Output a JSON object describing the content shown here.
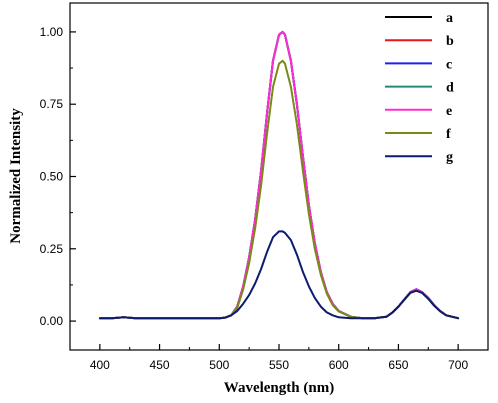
{
  "chart_data": {
    "type": "line",
    "title": "",
    "xlabel": "Wavelength (nm)",
    "ylabel": "Normalized Intensity",
    "xlim": [
      375,
      725
    ],
    "ylim": [
      -0.1,
      1.1
    ],
    "xticks": [
      400,
      450,
      500,
      550,
      600,
      650,
      700
    ],
    "xtick_labels": [
      "400",
      "450",
      "500",
      "550",
      "600",
      "650",
      "700"
    ],
    "yticks": [
      0.0,
      0.25,
      0.5,
      0.75,
      1.0
    ],
    "ytick_labels": [
      "0.00",
      "0.25",
      "0.50",
      "0.75",
      "1.00"
    ],
    "grid": false,
    "legend_position": "top-right",
    "x": [
      400,
      410,
      420,
      430,
      440,
      450,
      460,
      470,
      480,
      490,
      500,
      505,
      510,
      515,
      520,
      525,
      530,
      535,
      540,
      545,
      550,
      553,
      555,
      560,
      565,
      570,
      575,
      580,
      585,
      590,
      595,
      600,
      610,
      620,
      630,
      640,
      645,
      650,
      655,
      660,
      665,
      670,
      675,
      680,
      685,
      690,
      700
    ],
    "series": [
      {
        "name": "a",
        "color": "#000000",
        "values": [
          0.01,
          0.01,
          0.013,
          0.01,
          0.01,
          0.01,
          0.01,
          0.01,
          0.01,
          0.01,
          0.01,
          0.012,
          0.02,
          0.05,
          0.12,
          0.22,
          0.35,
          0.52,
          0.72,
          0.9,
          0.99,
          1.0,
          0.99,
          0.9,
          0.75,
          0.57,
          0.4,
          0.27,
          0.17,
          0.1,
          0.06,
          0.035,
          0.015,
          0.01,
          0.01,
          0.015,
          0.03,
          0.05,
          0.075,
          0.1,
          0.11,
          0.1,
          0.08,
          0.055,
          0.035,
          0.02,
          0.01
        ]
      },
      {
        "name": "b",
        "color": "#e8141c",
        "values": [
          0.01,
          0.01,
          0.013,
          0.01,
          0.01,
          0.01,
          0.01,
          0.01,
          0.01,
          0.01,
          0.01,
          0.012,
          0.02,
          0.05,
          0.12,
          0.22,
          0.35,
          0.52,
          0.72,
          0.9,
          0.99,
          1.0,
          0.99,
          0.9,
          0.75,
          0.57,
          0.4,
          0.27,
          0.17,
          0.1,
          0.06,
          0.035,
          0.015,
          0.01,
          0.01,
          0.015,
          0.03,
          0.05,
          0.075,
          0.1,
          0.11,
          0.1,
          0.08,
          0.055,
          0.035,
          0.02,
          0.01
        ]
      },
      {
        "name": "c",
        "color": "#1f1fe6",
        "values": [
          0.01,
          0.01,
          0.013,
          0.01,
          0.01,
          0.01,
          0.01,
          0.01,
          0.01,
          0.01,
          0.01,
          0.012,
          0.02,
          0.05,
          0.12,
          0.22,
          0.35,
          0.52,
          0.72,
          0.9,
          0.99,
          1.0,
          0.99,
          0.9,
          0.75,
          0.57,
          0.4,
          0.27,
          0.17,
          0.1,
          0.06,
          0.035,
          0.015,
          0.01,
          0.01,
          0.015,
          0.03,
          0.05,
          0.075,
          0.1,
          0.11,
          0.1,
          0.08,
          0.055,
          0.035,
          0.02,
          0.01
        ]
      },
      {
        "name": "d",
        "color": "#1f8a80",
        "values": [
          0.01,
          0.01,
          0.013,
          0.01,
          0.01,
          0.01,
          0.01,
          0.01,
          0.01,
          0.01,
          0.01,
          0.012,
          0.02,
          0.05,
          0.12,
          0.22,
          0.35,
          0.52,
          0.72,
          0.9,
          0.99,
          1.0,
          0.99,
          0.9,
          0.75,
          0.57,
          0.4,
          0.27,
          0.17,
          0.1,
          0.06,
          0.035,
          0.015,
          0.01,
          0.01,
          0.015,
          0.03,
          0.05,
          0.075,
          0.1,
          0.11,
          0.1,
          0.08,
          0.055,
          0.035,
          0.02,
          0.01
        ]
      },
      {
        "name": "e",
        "color": "#ff2bd4",
        "values": [
          0.01,
          0.01,
          0.013,
          0.01,
          0.01,
          0.01,
          0.01,
          0.01,
          0.01,
          0.01,
          0.01,
          0.012,
          0.02,
          0.05,
          0.12,
          0.22,
          0.35,
          0.52,
          0.72,
          0.9,
          0.99,
          1.0,
          0.99,
          0.9,
          0.75,
          0.57,
          0.4,
          0.27,
          0.17,
          0.1,
          0.06,
          0.035,
          0.015,
          0.01,
          0.01,
          0.015,
          0.03,
          0.05,
          0.075,
          0.1,
          0.11,
          0.1,
          0.08,
          0.055,
          0.035,
          0.02,
          0.01
        ]
      },
      {
        "name": "f",
        "color": "#7a8a14",
        "values": [
          0.01,
          0.01,
          0.013,
          0.01,
          0.01,
          0.01,
          0.01,
          0.01,
          0.01,
          0.01,
          0.01,
          0.012,
          0.02,
          0.045,
          0.11,
          0.2,
          0.32,
          0.47,
          0.65,
          0.81,
          0.89,
          0.9,
          0.89,
          0.81,
          0.68,
          0.52,
          0.37,
          0.25,
          0.16,
          0.095,
          0.055,
          0.033,
          0.015,
          0.01,
          0.01,
          0.015,
          0.03,
          0.05,
          0.073,
          0.097,
          0.105,
          0.097,
          0.077,
          0.053,
          0.034,
          0.02,
          0.01
        ]
      },
      {
        "name": "g",
        "color": "#0d1b6e",
        "values": [
          0.01,
          0.01,
          0.013,
          0.01,
          0.01,
          0.01,
          0.01,
          0.01,
          0.01,
          0.01,
          0.01,
          0.012,
          0.02,
          0.035,
          0.06,
          0.09,
          0.13,
          0.18,
          0.24,
          0.29,
          0.31,
          0.31,
          0.305,
          0.28,
          0.23,
          0.17,
          0.12,
          0.08,
          0.05,
          0.03,
          0.02,
          0.013,
          0.01,
          0.01,
          0.01,
          0.015,
          0.03,
          0.05,
          0.075,
          0.098,
          0.105,
          0.097,
          0.077,
          0.053,
          0.034,
          0.02,
          0.01
        ]
      }
    ]
  }
}
